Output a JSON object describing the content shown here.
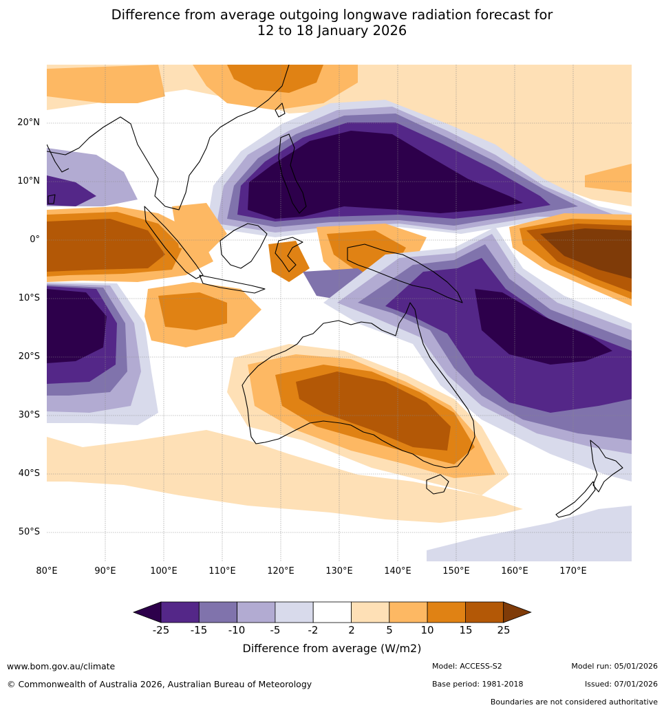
{
  "title": {
    "line1": "Difference from average outgoing longwave radiation forecast for",
    "line2": "12 to 18 January 2026"
  },
  "map": {
    "lat_labels": [
      "20°N",
      "10°N",
      "0°",
      "10°S",
      "20°S",
      "30°S",
      "40°S",
      "50°S"
    ],
    "lon_labels": [
      "80°E",
      "90°E",
      "100°E",
      "110°E",
      "120°E",
      "130°E",
      "140°E",
      "150°E",
      "160°E",
      "170°E"
    ],
    "lat_range": [
      30,
      -55
    ],
    "lon_range": [
      80,
      180
    ]
  },
  "colorbar": {
    "ticks": [
      "-25",
      "-15",
      "-10",
      "-5",
      "-2",
      "2",
      "5",
      "10",
      "15",
      "25"
    ],
    "colors": [
      "#2d004b",
      "#542788",
      "#8073ac",
      "#b2abd2",
      "#d8daeb",
      "#ffffff",
      "#fee0b6",
      "#fdb863",
      "#e08214",
      "#b35806",
      "#7f3b08"
    ],
    "label": "Difference from average (W/m2)"
  },
  "footer": {
    "website": "www.bom.gov.au/climate",
    "copyright": "© Commonwealth of Australia 2026, Australian Bureau of Meteorology",
    "model": "Model: ACCESS-S2",
    "model_run": "Model run: 05/01/2026",
    "base_period": "Base period: 1981-2018",
    "issued": "Issued: 07/01/2026",
    "disclaimer": "Boundaries are not considered authoritative"
  }
}
